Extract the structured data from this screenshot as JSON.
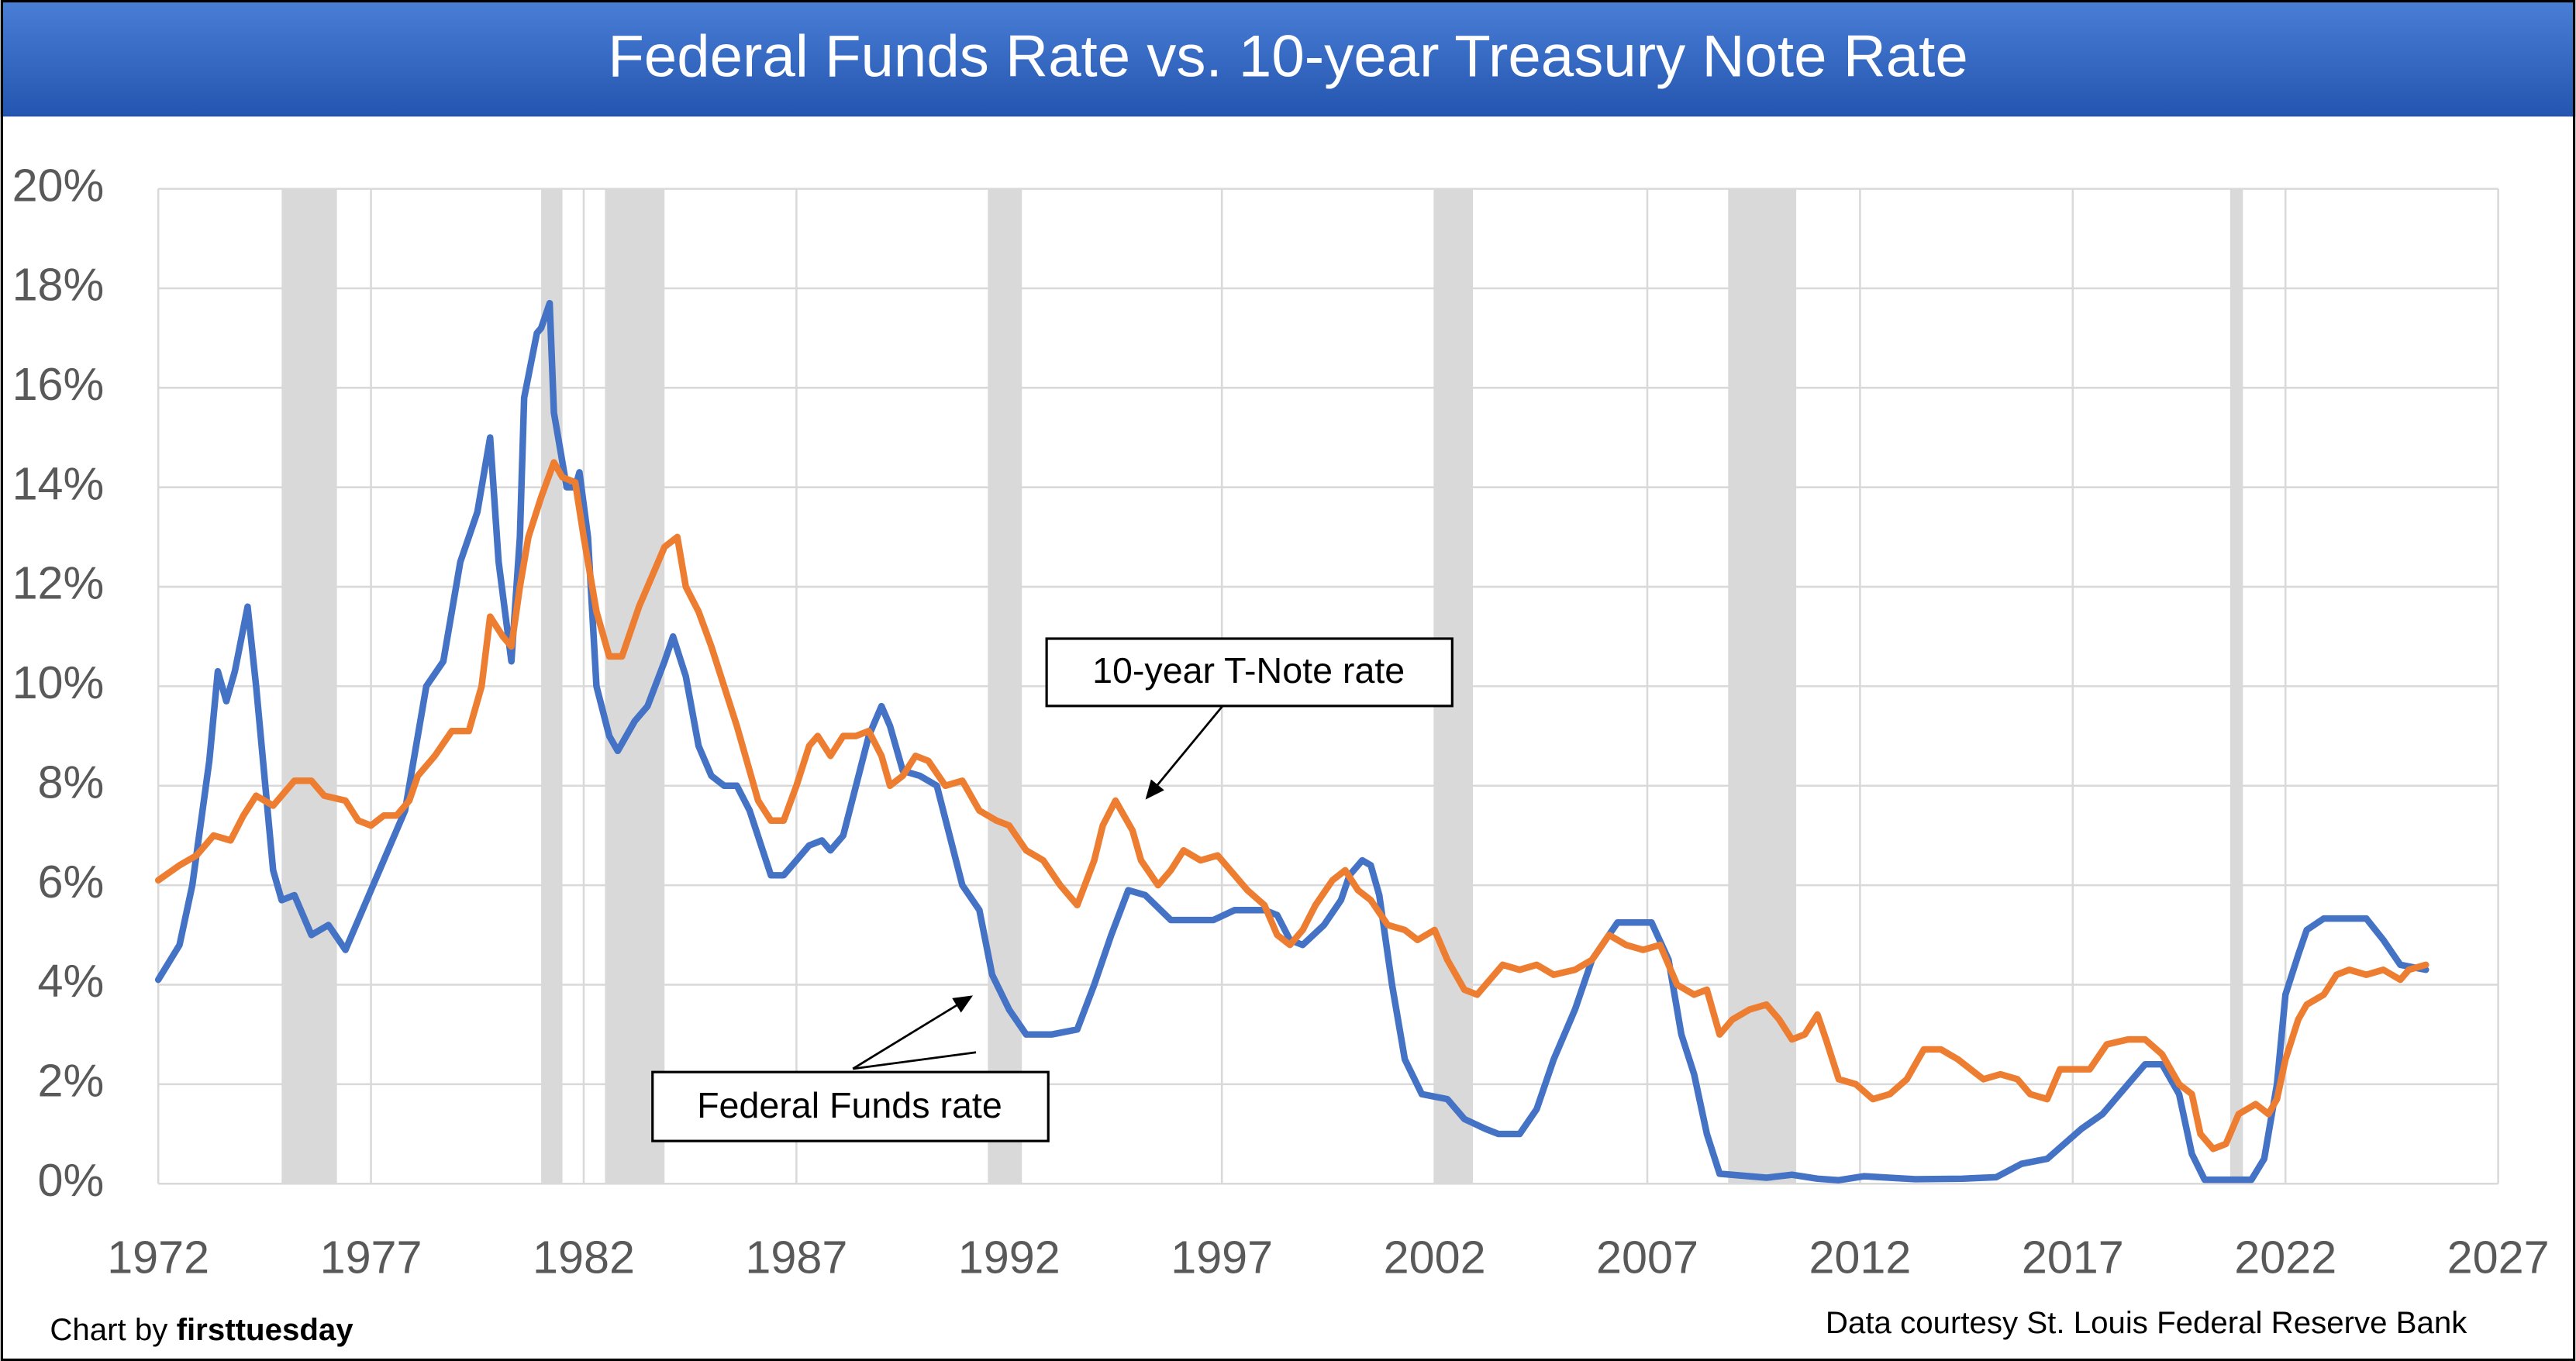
{
  "chart_data": {
    "type": "line",
    "title": "Federal Funds Rate vs. 10-year Treasury Note Rate",
    "xlim": [
      1972,
      2027
    ],
    "xticks": [
      1972,
      1977,
      1982,
      1987,
      1992,
      1997,
      2002,
      2007,
      2012,
      2017,
      2022,
      2027
    ],
    "ylim": [
      0,
      20
    ],
    "yticks": [
      {
        "value": 0,
        "label": "0%"
      },
      {
        "value": 2,
        "label": "2%"
      },
      {
        "value": 4,
        "label": "4%"
      },
      {
        "value": 6,
        "label": "6%"
      },
      {
        "value": 8,
        "label": "8%"
      },
      {
        "value": 10,
        "label": "10%"
      },
      {
        "value": 12,
        "label": "12%"
      },
      {
        "value": 14,
        "label": "14%"
      },
      {
        "value": 16,
        "label": "16%"
      },
      {
        "value": 18,
        "label": "18%"
      },
      {
        "value": 20,
        "label": "20%"
      }
    ],
    "grid": true,
    "shaded_ranges": [
      [
        1974.9,
        1976.2
      ],
      [
        1981.0,
        1981.5
      ],
      [
        1982.5,
        1983.9
      ],
      [
        1991.5,
        1992.3
      ],
      [
        2002.0,
        2002.9
      ],
      [
        2008.9,
        2010.5
      ],
      [
        2020.7,
        2021.0
      ]
    ],
    "shade_color": "#d9d9d9",
    "series": [
      {
        "name": "Federal Funds rate",
        "color": "#4472c4",
        "x": [
          1972.0,
          1972.5,
          1972.8,
          1973.2,
          1973.4,
          1973.6,
          1973.8,
          1974.1,
          1974.3,
          1974.7,
          1974.9,
          1975.2,
          1975.6,
          1976.0,
          1976.4,
          1976.8,
          1977.3,
          1977.8,
          1978.3,
          1978.7,
          1979.1,
          1979.5,
          1979.8,
          1980.0,
          1980.3,
          1980.5,
          1980.6,
          1980.9,
          1981.0,
          1981.2,
          1981.3,
          1981.6,
          1981.8,
          1981.9,
          1982.1,
          1982.3,
          1982.6,
          1982.8,
          1983.2,
          1983.5,
          1983.9,
          1984.1,
          1984.4,
          1984.7,
          1985.0,
          1985.3,
          1985.6,
          1985.9,
          1986.4,
          1986.7,
          1987.1,
          1987.3,
          1987.6,
          1987.8,
          1988.1,
          1988.4,
          1988.7,
          1989.0,
          1989.2,
          1989.5,
          1989.9,
          1990.3,
          1990.6,
          1990.9,
          1991.3,
          1991.6,
          1992.0,
          1992.4,
          1993.0,
          1993.6,
          1994.0,
          1994.4,
          1994.8,
          1995.2,
          1995.8,
          1996.8,
          1997.3,
          1998.0,
          1998.3,
          1998.6,
          1998.9,
          1999.4,
          1999.8,
          2000.0,
          2000.3,
          2000.5,
          2000.7,
          2001.0,
          2001.3,
          2001.7,
          2002.3,
          2002.7,
          2003.2,
          2003.5,
          2004.0,
          2004.4,
          2004.8,
          2005.3,
          2005.7,
          2006.3,
          2007.1,
          2007.5,
          2007.8,
          2008.1,
          2008.4,
          2008.7,
          2009.8,
          2010.4,
          2011.0,
          2011.5,
          2012.1,
          2013.3,
          2014.4,
          2015.2,
          2015.8,
          2016.4,
          2017.2,
          2017.7,
          2018.3,
          2018.7,
          2019.1,
          2019.5,
          2019.8,
          2020.1,
          2021.2,
          2021.5,
          2021.8,
          2022.0,
          2022.3,
          2022.5,
          2022.9,
          2023.9,
          2024.3,
          2024.7,
          2025.3
        ],
        "values": [
          4.1,
          4.8,
          6.0,
          8.5,
          10.3,
          9.7,
          10.3,
          11.6,
          10.0,
          6.3,
          5.7,
          5.8,
          5.0,
          5.2,
          4.7,
          5.5,
          6.5,
          7.5,
          10.0,
          10.5,
          12.5,
          13.5,
          15.0,
          12.5,
          10.5,
          13.0,
          15.8,
          17.1,
          17.2,
          17.7,
          15.5,
          14.0,
          14.0,
          14.3,
          13.0,
          10.0,
          9.0,
          8.7,
          9.3,
          9.6,
          10.5,
          11.0,
          10.2,
          8.8,
          8.2,
          8.0,
          8.0,
          7.5,
          6.2,
          6.2,
          6.6,
          6.8,
          6.9,
          6.7,
          7.0,
          8.0,
          9.0,
          9.6,
          9.2,
          8.3,
          8.2,
          8.0,
          7.0,
          6.0,
          5.5,
          4.2,
          3.5,
          3.0,
          3.0,
          3.1,
          4.0,
          5.0,
          5.9,
          5.8,
          5.3,
          5.3,
          5.5,
          5.5,
          5.4,
          4.9,
          4.8,
          5.2,
          5.7,
          6.2,
          6.5,
          6.4,
          5.8,
          4.0,
          2.5,
          1.8,
          1.7,
          1.3,
          1.1,
          1.0,
          1.0,
          1.5,
          2.5,
          3.5,
          4.5,
          5.25,
          5.25,
          4.5,
          3.0,
          2.2,
          1.0,
          0.2,
          0.12,
          0.18,
          0.1,
          0.07,
          0.15,
          0.09,
          0.1,
          0.13,
          0.4,
          0.5,
          1.1,
          1.4,
          2.0,
          2.4,
          2.4,
          1.8,
          0.6,
          0.08,
          0.08,
          0.5,
          2.0,
          3.8,
          4.6,
          5.1,
          5.33,
          5.33,
          4.9,
          4.4,
          4.3
        ]
      },
      {
        "name": "10-year T-Note rate",
        "color": "#ed7d31",
        "x": [
          1972.0,
          1972.5,
          1972.9,
          1973.3,
          1973.7,
          1974.0,
          1974.3,
          1974.7,
          1974.9,
          1975.2,
          1975.6,
          1975.9,
          1976.4,
          1976.7,
          1977.0,
          1977.3,
          1977.6,
          1977.9,
          1978.1,
          1978.5,
          1978.9,
          1979.3,
          1979.6,
          1979.8,
          1980.1,
          1980.3,
          1980.5,
          1980.7,
          1981.0,
          1981.3,
          1981.5,
          1981.8,
          1982.0,
          1982.3,
          1982.6,
          1982.9,
          1983.3,
          1983.5,
          1983.9,
          1984.2,
          1984.4,
          1984.7,
          1985.0,
          1985.3,
          1985.6,
          1985.9,
          1986.1,
          1986.4,
          1986.7,
          1987.0,
          1987.3,
          1987.5,
          1987.8,
          1988.1,
          1988.4,
          1988.7,
          1989.0,
          1989.2,
          1989.5,
          1989.8,
          1990.1,
          1990.5,
          1990.9,
          1991.3,
          1991.7,
          1992.0,
          1992.4,
          1992.8,
          1993.2,
          1993.6,
          1994.0,
          1994.2,
          1994.5,
          1994.9,
          1995.1,
          1995.5,
          1995.8,
          1996.1,
          1996.5,
          1996.9,
          1997.2,
          1997.6,
          1998.0,
          1998.3,
          1998.6,
          1998.9,
          1999.2,
          1999.6,
          1999.9,
          2000.2,
          2000.5,
          2000.9,
          2001.3,
          2001.6,
          2002.0,
          2002.3,
          2002.7,
          2003.0,
          2003.2,
          2003.6,
          2004.0,
          2004.4,
          2004.8,
          2005.3,
          2005.7,
          2006.1,
          2006.5,
          2006.9,
          2007.3,
          2007.7,
          2008.1,
          2008.4,
          2008.7,
          2009.0,
          2009.4,
          2009.8,
          2010.1,
          2010.4,
          2010.7,
          2011.0,
          2011.2,
          2011.5,
          2011.9,
          2012.3,
          2012.7,
          2013.1,
          2013.5,
          2013.9,
          2014.3,
          2014.6,
          2014.9,
          2015.3,
          2015.7,
          2016.0,
          2016.4,
          2016.7,
          2017.0,
          2017.4,
          2017.8,
          2018.3,
          2018.7,
          2019.1,
          2019.5,
          2019.8,
          2020.0,
          2020.3,
          2020.6,
          2020.9,
          2021.3,
          2021.6,
          2021.8,
          2022.0,
          2022.3,
          2022.5,
          2022.9,
          2023.2,
          2023.5,
          2023.9,
          2024.3,
          2024.7,
          2024.9,
          2025.3
        ],
        "values": [
          6.1,
          6.4,
          6.6,
          7.0,
          6.9,
          7.4,
          7.8,
          7.6,
          7.8,
          8.1,
          8.1,
          7.8,
          7.7,
          7.3,
          7.2,
          7.4,
          7.4,
          7.7,
          8.2,
          8.6,
          9.1,
          9.1,
          10.0,
          11.4,
          11.0,
          10.8,
          12.0,
          13.0,
          13.8,
          14.5,
          14.2,
          14.1,
          13.0,
          11.5,
          10.6,
          10.6,
          11.6,
          12.0,
          12.8,
          13.0,
          12.0,
          11.5,
          10.8,
          10.0,
          9.2,
          8.3,
          7.7,
          7.3,
          7.3,
          8.0,
          8.8,
          9.0,
          8.6,
          9.0,
          9.0,
          9.1,
          8.6,
          8.0,
          8.2,
          8.6,
          8.5,
          8.0,
          8.1,
          7.5,
          7.3,
          7.2,
          6.7,
          6.5,
          6.0,
          5.6,
          6.5,
          7.2,
          7.7,
          7.1,
          6.5,
          6.0,
          6.3,
          6.7,
          6.5,
          6.6,
          6.3,
          5.9,
          5.6,
          5.0,
          4.8,
          5.1,
          5.6,
          6.1,
          6.3,
          5.9,
          5.7,
          5.2,
          5.1,
          4.9,
          5.1,
          4.5,
          3.9,
          3.8,
          4.0,
          4.4,
          4.3,
          4.4,
          4.2,
          4.3,
          4.5,
          5.0,
          4.8,
          4.7,
          4.8,
          4.0,
          3.8,
          3.9,
          3.0,
          3.3,
          3.5,
          3.6,
          3.3,
          2.9,
          3.0,
          3.4,
          2.9,
          2.1,
          2.0,
          1.7,
          1.8,
          2.1,
          2.7,
          2.7,
          2.5,
          2.3,
          2.1,
          2.2,
          2.1,
          1.8,
          1.7,
          2.3,
          2.3,
          2.3,
          2.8,
          2.9,
          2.9,
          2.6,
          2.0,
          1.8,
          1.0,
          0.7,
          0.8,
          1.4,
          1.6,
          1.4,
          1.7,
          2.5,
          3.3,
          3.6,
          3.8,
          4.2,
          4.3,
          4.2,
          4.3,
          4.1,
          4.3,
          4.4
        ]
      }
    ],
    "annotations": [
      "10-year T-Note rate",
      "Federal Funds rate"
    ],
    "credit_prefix": "Chart by",
    "credit_name": "firsttuesday",
    "source": "Data courtesy St. Louis Federal Reserve Bank"
  }
}
